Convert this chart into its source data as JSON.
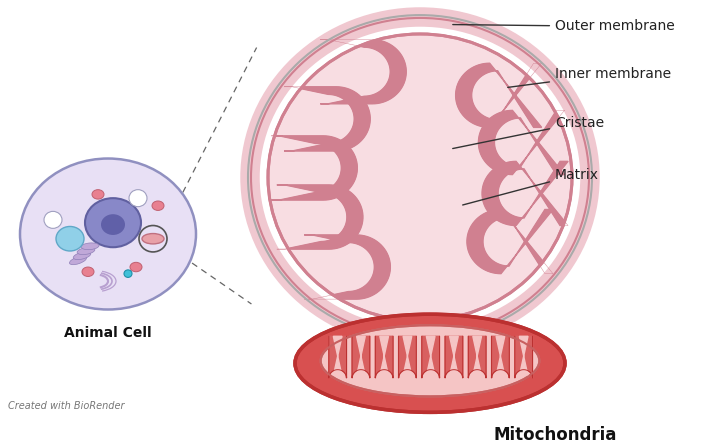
{
  "bg_color": "#ffffff",
  "outer_membrane_color": "#b0a0b0",
  "outer_fill": "#f0c8d0",
  "inner_membrane_color": "#d08090",
  "matrix_color": "#f8dde2",
  "cristae_color": "#d08090",
  "label_color": "#222222",
  "ann_line_color": "#333333",
  "dash_color": "#666666",
  "animal_cell_label": "Animal Cell",
  "mito_3d_label": "Mitochondria",
  "footer": "Created with BioRender",
  "font_size_label": 10,
  "font_size_cell": 10,
  "font_size_mito": 12,
  "font_size_footer": 7
}
